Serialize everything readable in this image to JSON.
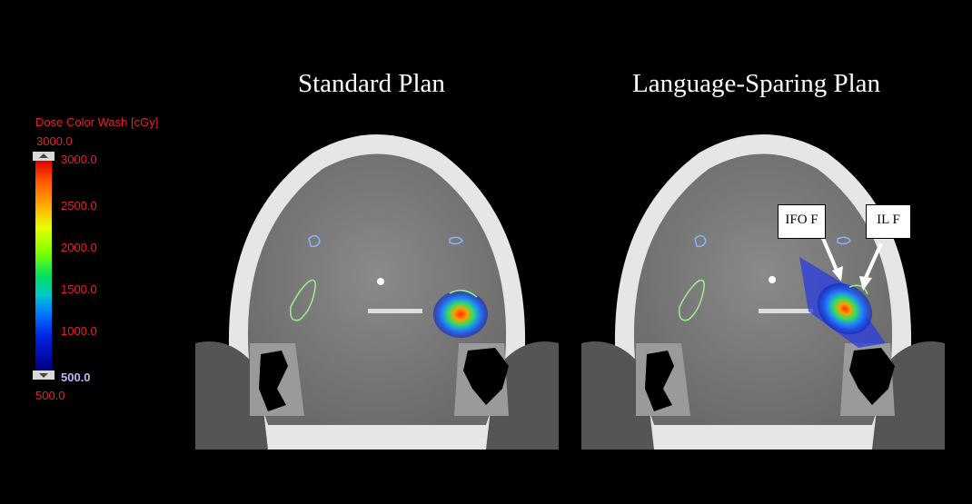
{
  "titles": {
    "left": "Standard Plan",
    "right": "Language-Sparing Plan"
  },
  "legend": {
    "title": "Dose Color Wash [cGy]",
    "max_value": "3000.0",
    "min_value": "500.0",
    "ticks": [
      "3000.0",
      "2500.0",
      "2000.0",
      "1500.0",
      "1000.0",
      "500.0"
    ],
    "colors": {
      "high": "#e10000",
      "mid": "#7cff00",
      "low": "#000080"
    }
  },
  "annotations": {
    "label1": "IFO F",
    "label2": "IL F"
  }
}
